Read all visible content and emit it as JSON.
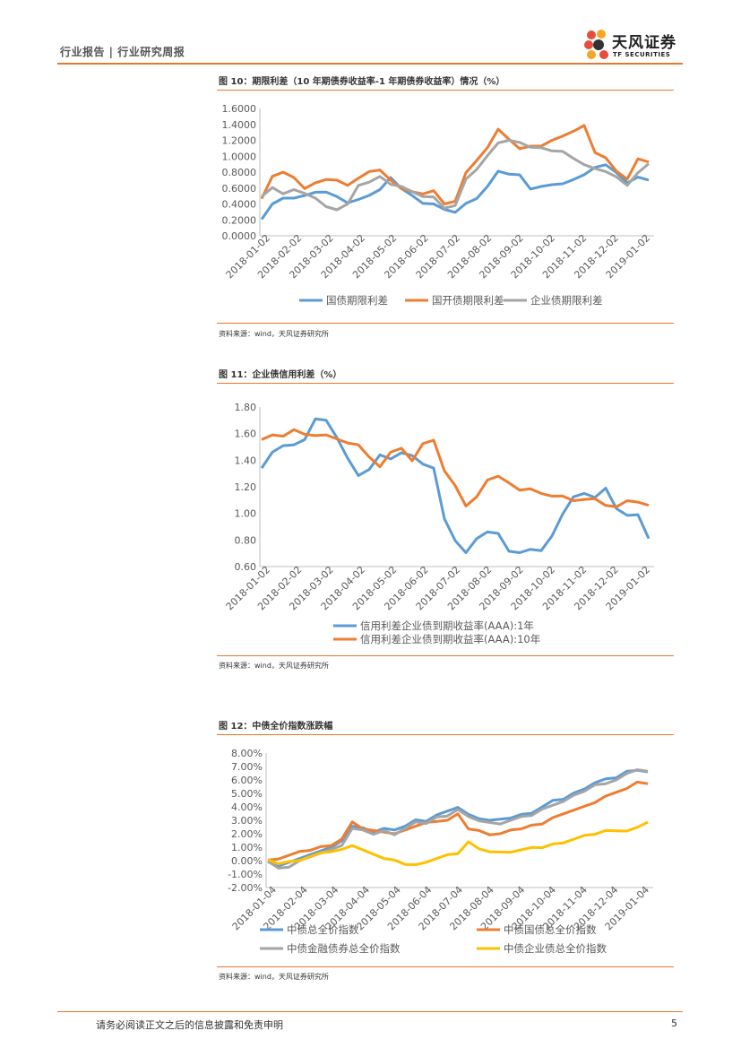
{
  "header": {
    "title": "行业报告 | 行业研究周报",
    "brand": "天风证券",
    "brand_en": "TF SECURITIES"
  },
  "footer": {
    "disclaimer": "请务必阅读正文之后的信息披露和免责申明",
    "page": "5"
  },
  "figures": [
    {
      "title": "图 10：期限利差（10 年期债券收益率-1 年期债券收益率）情况（%）",
      "source": "资料来源：wind，天风证券研究所"
    },
    {
      "title": "图 11：企业债信用利差（%）",
      "source": "资料来源：wind，天风证券研究所"
    },
    {
      "title": "图 12：中债全价指数涨跌幅",
      "source": "资料来源：wind，天风证券研究所"
    }
  ],
  "chart_data": [
    {
      "type": "line",
      "title": "图 10",
      "x_ticks": [
        "2018-01-02",
        "2018-02-02",
        "2018-03-02",
        "2018-04-02",
        "2018-05-02",
        "2018-06-02",
        "2018-07-02",
        "2018-08-02",
        "2018-09-02",
        "2018-10-02",
        "2018-11-02",
        "2018-12-02",
        "2019-01-02"
      ],
      "y_ticks": [
        "0.0000",
        "0.2000",
        "0.4000",
        "0.6000",
        "0.8000",
        "1.0000",
        "1.2000",
        "1.4000",
        "1.6000"
      ],
      "ylim": [
        0,
        1.6
      ],
      "legend_position": "bottom",
      "series": [
        {
          "name": "国债期限利差",
          "color": "#5b9bd5",
          "values": [
            0.22,
            0.4,
            0.46,
            0.48,
            0.5,
            0.56,
            0.55,
            0.48,
            0.42,
            0.45,
            0.52,
            0.58,
            0.72,
            0.6,
            0.5,
            0.42,
            0.4,
            0.32,
            0.3,
            0.4,
            0.48,
            0.62,
            0.8,
            0.78,
            0.76,
            0.6,
            0.62,
            0.63,
            0.66,
            0.7,
            0.78,
            0.86,
            0.88,
            0.8,
            0.66,
            0.75,
            0.7
          ]
        },
        {
          "name": "国开债期限利差",
          "color": "#ed7d31",
          "values": [
            0.46,
            0.76,
            0.8,
            0.72,
            0.6,
            0.66,
            0.72,
            0.7,
            0.62,
            0.73,
            0.8,
            0.84,
            0.7,
            0.58,
            0.56,
            0.52,
            0.58,
            0.4,
            0.42,
            0.8,
            0.94,
            1.12,
            1.34,
            1.2,
            1.1,
            1.12,
            1.14,
            1.2,
            1.24,
            1.32,
            1.38,
            1.06,
            0.98,
            0.8,
            0.72,
            0.96,
            0.94
          ]
        },
        {
          "name": "企业债期限利差",
          "color": "#a5a5a5",
          "values": [
            0.5,
            0.6,
            0.54,
            0.58,
            0.52,
            0.48,
            0.36,
            0.34,
            0.4,
            0.62,
            0.68,
            0.74,
            0.66,
            0.62,
            0.54,
            0.5,
            0.48,
            0.36,
            0.38,
            0.7,
            0.84,
            1.0,
            1.18,
            1.2,
            1.16,
            1.12,
            1.1,
            1.08,
            1.06,
            0.96,
            0.9,
            0.84,
            0.82,
            0.74,
            0.62,
            0.8,
            0.9
          ]
        }
      ]
    },
    {
      "type": "line",
      "title": "图 11",
      "x_ticks": [
        "2018-01-02",
        "2018-02-02",
        "2018-03-02",
        "2018-04-02",
        "2018-05-02",
        "2018-06-02",
        "2018-07-02",
        "2018-08-02",
        "2018-09-02",
        "2018-10-02",
        "2018-11-02",
        "2018-12-02",
        "2019-01-02"
      ],
      "y_ticks": [
        "0.60",
        "0.80",
        "1.00",
        "1.20",
        "1.40",
        "1.60",
        "1.80"
      ],
      "ylim": [
        0.6,
        1.8
      ],
      "legend_position": "bottom",
      "series": [
        {
          "name": "信用利差企业债到期收益率(AAA):1年",
          "color": "#5b9bd5",
          "values": [
            1.35,
            1.46,
            1.5,
            1.52,
            1.55,
            1.72,
            1.7,
            1.56,
            1.42,
            1.28,
            1.34,
            1.44,
            1.4,
            1.46,
            1.43,
            1.38,
            1.34,
            0.95,
            0.8,
            0.7,
            0.82,
            0.86,
            0.84,
            0.72,
            0.7,
            0.74,
            0.72,
            0.82,
            1.0,
            1.12,
            1.16,
            1.12,
            1.18,
            1.04,
            0.98,
            1.0,
            0.81
          ]
        },
        {
          "name": "信用利差企业债到期收益率(AAA):10年",
          "color": "#ed7d31",
          "values": [
            1.55,
            1.6,
            1.58,
            1.62,
            1.6,
            1.58,
            1.6,
            1.56,
            1.52,
            1.52,
            1.42,
            1.36,
            1.46,
            1.48,
            1.4,
            1.52,
            1.56,
            1.32,
            1.2,
            1.06,
            1.12,
            1.26,
            1.28,
            1.22,
            1.18,
            1.18,
            1.16,
            1.13,
            1.12,
            1.1,
            1.1,
            1.12,
            1.06,
            1.04,
            1.1,
            1.08,
            1.07
          ]
        }
      ]
    },
    {
      "type": "line",
      "title": "图 12",
      "x_ticks": [
        "2018-01-04",
        "2018-02-04",
        "2018-03-04",
        "2018-04-04",
        "2018-05-04",
        "2018-06-04",
        "2018-07-04",
        "2018-08-04",
        "2018-09-04",
        "2018-10-04",
        "2018-11-04",
        "2018-12-04",
        "2019-01-04"
      ],
      "y_ticks": [
        "-2.00%",
        "-1.00%",
        "0.00%",
        "1.00%",
        "2.00%",
        "3.00%",
        "4.00%",
        "5.00%",
        "6.00%",
        "7.00%",
        "8.00%"
      ],
      "ylim": [
        -2,
        8
      ],
      "legend_position": "bottom",
      "series": [
        {
          "name": "中债总全价指数",
          "color": "#5b9bd5",
          "values": [
            0.0,
            -0.4,
            -0.2,
            0.2,
            0.4,
            0.8,
            1.0,
            1.4,
            2.6,
            2.4,
            2.2,
            2.4,
            2.2,
            2.6,
            3.0,
            3.0,
            3.4,
            3.6,
            4.0,
            3.4,
            3.2,
            3.0,
            3.0,
            3.2,
            3.4,
            3.6,
            4.0,
            4.4,
            4.6,
            5.0,
            5.4,
            5.8,
            6.0,
            6.2,
            6.6,
            6.8,
            6.6
          ]
        },
        {
          "name": "中债国债总全价指数",
          "color": "#ed7d31",
          "values": [
            0.0,
            0.2,
            0.4,
            0.6,
            0.8,
            1.0,
            1.2,
            1.6,
            2.8,
            2.4,
            2.2,
            2.2,
            2.0,
            2.2,
            2.6,
            2.8,
            3.0,
            3.0,
            3.4,
            2.4,
            2.2,
            2.0,
            2.0,
            2.2,
            2.4,
            2.6,
            2.8,
            3.2,
            3.4,
            3.8,
            4.0,
            4.4,
            4.8,
            5.0,
            5.4,
            5.8,
            5.8
          ]
        },
        {
          "name": "中债金融债券总全价指数",
          "color": "#a5a5a5",
          "values": [
            0.0,
            -0.6,
            -0.4,
            0.0,
            0.2,
            0.6,
            0.8,
            1.2,
            2.4,
            2.2,
            2.0,
            2.2,
            2.0,
            2.4,
            2.8,
            2.8,
            3.2,
            3.4,
            3.8,
            3.2,
            3.0,
            2.8,
            2.8,
            3.0,
            3.2,
            3.4,
            3.8,
            4.2,
            4.4,
            4.8,
            5.2,
            5.6,
            5.8,
            6.0,
            6.4,
            6.8,
            6.6
          ]
        },
        {
          "name": "中债企业债总全价指数",
          "color": "#ffc000",
          "values": [
            0.0,
            -0.2,
            -0.1,
            0.1,
            0.3,
            0.5,
            0.7,
            0.8,
            1.2,
            0.8,
            0.4,
            0.2,
            0.0,
            -0.2,
            -0.3,
            -0.2,
            0.2,
            0.4,
            0.6,
            1.4,
            0.8,
            0.7,
            0.6,
            0.7,
            0.8,
            0.9,
            1.0,
            1.2,
            1.4,
            1.6,
            1.8,
            2.0,
            2.2,
            2.3,
            2.2,
            2.4,
            2.9
          ]
        }
      ]
    }
  ]
}
